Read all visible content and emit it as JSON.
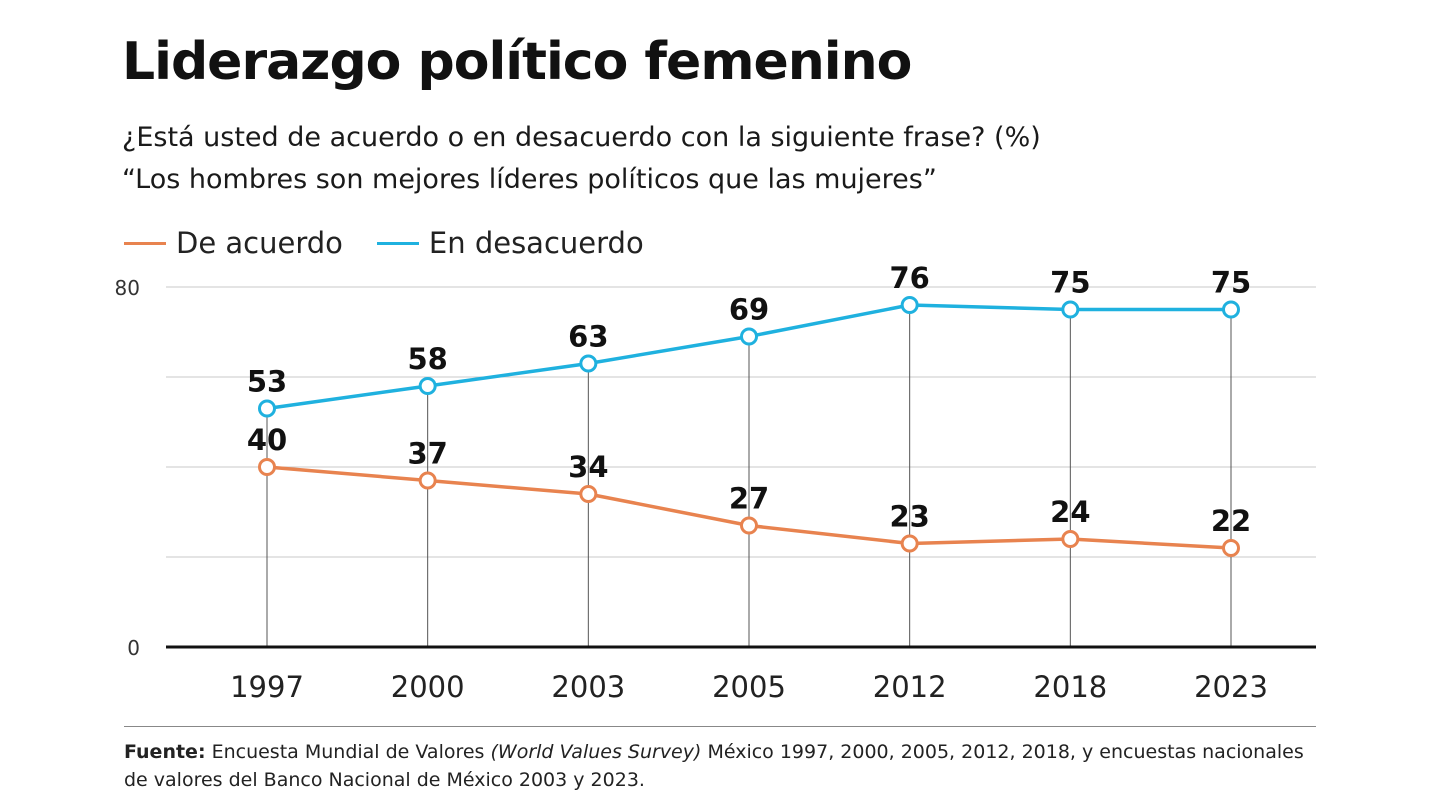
{
  "title": "Liderazgo político femenino",
  "subtitle_line1": "¿Está usted de acuerdo o en desacuerdo con la siguiente frase? (%)",
  "subtitle_line2": "“Los hombres son mejores líderes políticos que las mujeres”",
  "source": {
    "label": "Fuente:",
    "text_a": " Encuesta Mundial de Valores ",
    "text_italic": "(World Values Survey)",
    "text_b": " México 1997, 2000, 2005, 2012, 2018, y encuestas nacionales de valores del Banco Nacional de México 2003 y 2023."
  },
  "chart_data": {
    "type": "line",
    "categories": [
      "1997",
      "2000",
      "2003",
      "2005",
      "2012",
      "2018",
      "2023"
    ],
    "series": [
      {
        "name": "De acuerdo",
        "color": "#e8834f",
        "values": [
          40,
          37,
          34,
          27,
          23,
          24,
          22
        ]
      },
      {
        "name": "En desacuerdo",
        "color": "#1fb1df",
        "values": [
          53,
          58,
          63,
          69,
          76,
          75,
          75
        ]
      }
    ],
    "ylim": [
      0,
      80
    ],
    "y_tick_labels": [
      "0",
      "80"
    ],
    "gridlines": [
      20,
      40,
      60,
      80
    ],
    "grid": true,
    "legend_placement": "top-left"
  }
}
